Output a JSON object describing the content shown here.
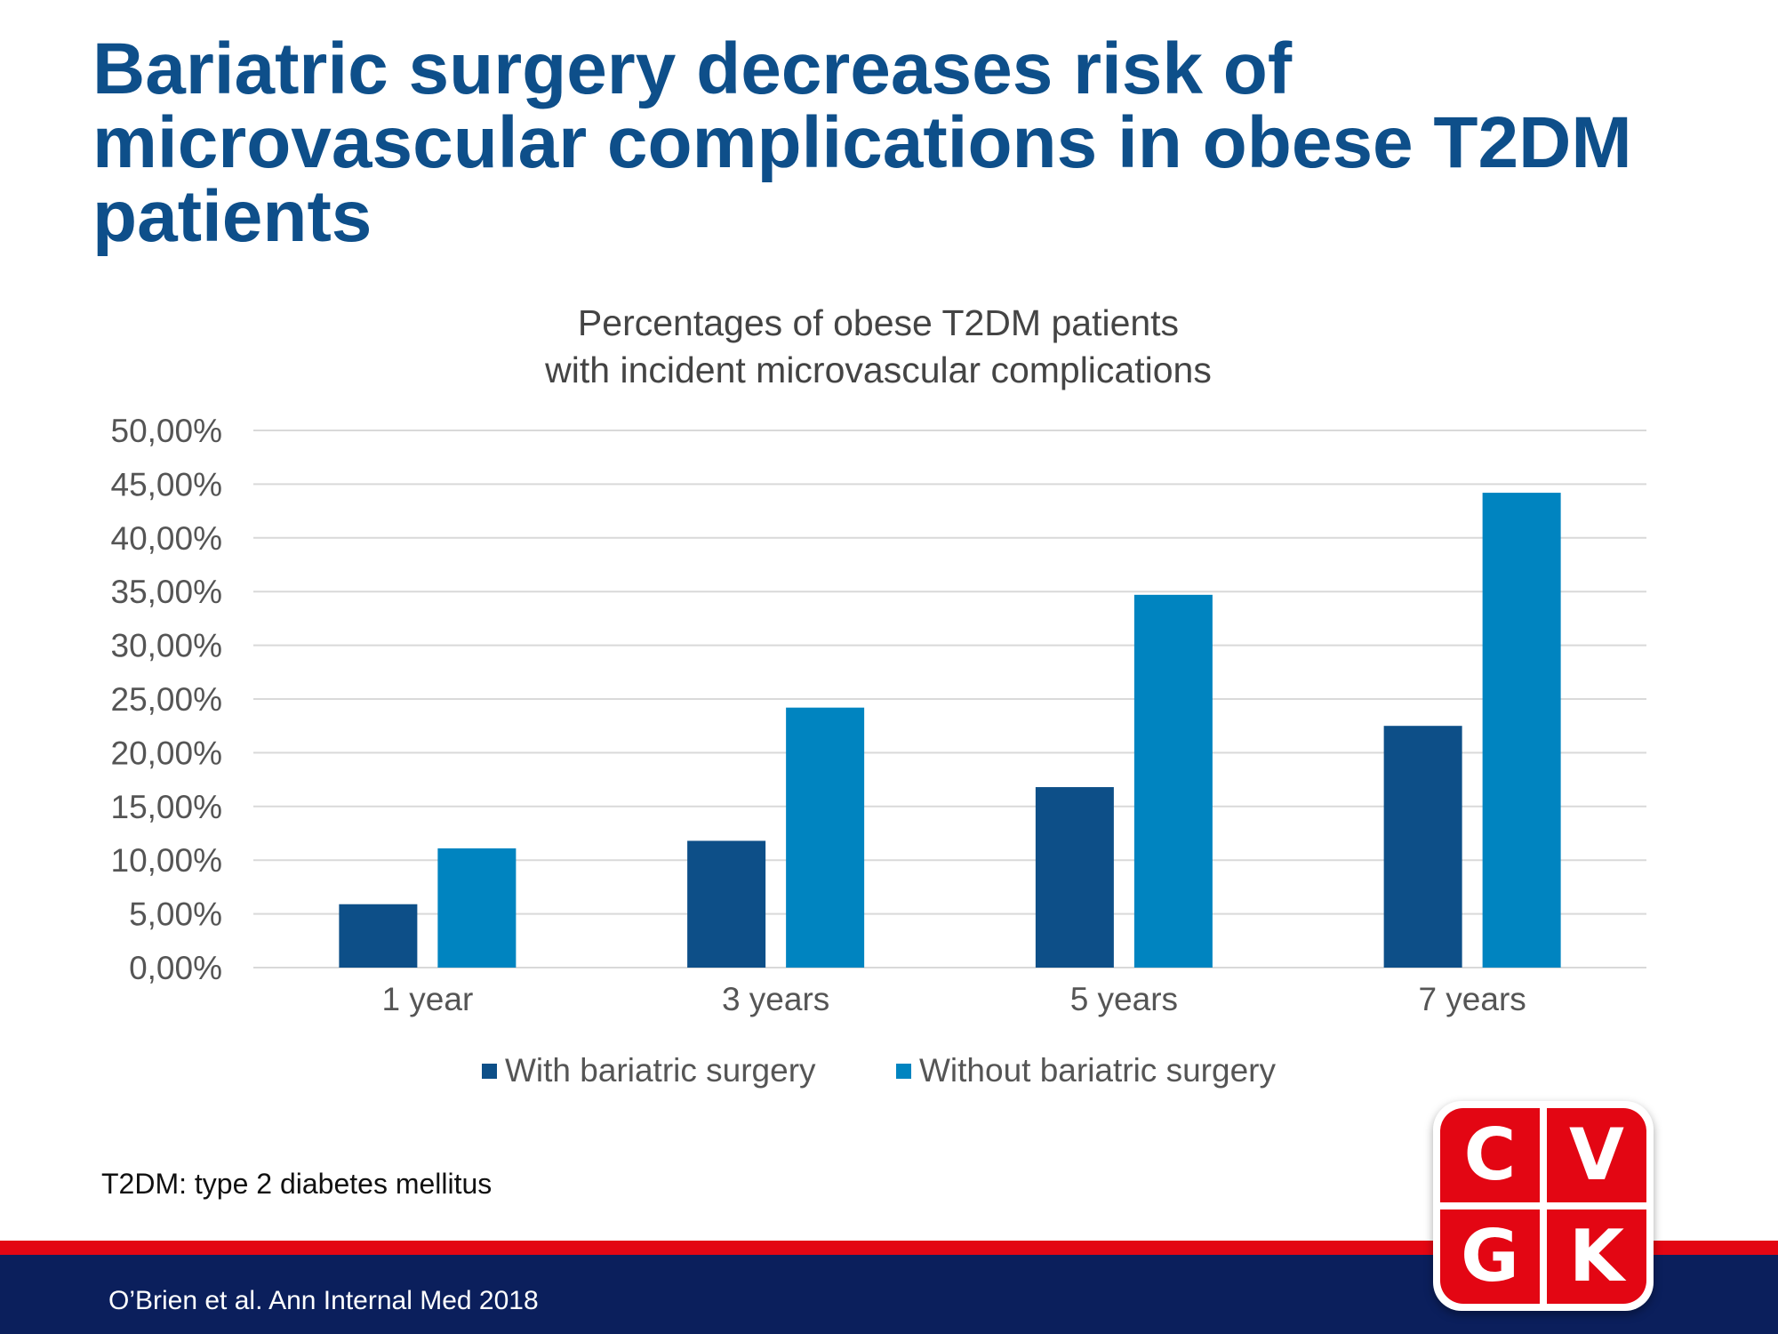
{
  "slide": {
    "title": "Bariatric surgery decreases risk of microvascular complications in obese T2DM patients",
    "footnote": "T2DM: type 2 diabetes mellitus",
    "citation": "O’Brien et al. Ann Internal Med 2018"
  },
  "logo": {
    "letters": [
      "C",
      "V",
      "G",
      "K"
    ]
  },
  "chart_data": {
    "type": "bar",
    "title": [
      "Percentages  of obese T2DM patients",
      "with  incident  microvascular  complications"
    ],
    "categories": [
      "1 year",
      "3 years",
      "5 years",
      "7 years"
    ],
    "series": [
      {
        "name": "With bariatric surgery",
        "values": [
          5.9,
          11.8,
          16.8,
          22.5
        ],
        "color": "#0d4f88"
      },
      {
        "name": "Without bariatric surgery",
        "values": [
          11.1,
          24.2,
          34.7,
          44.2
        ],
        "color": "#0084c0"
      }
    ],
    "ylim": [
      0,
      50
    ],
    "yticks": [
      0,
      5,
      10,
      15,
      20,
      25,
      30,
      35,
      40,
      45,
      50
    ],
    "ytick_labels": [
      "0,00%",
      "5,00%",
      "10,00%",
      "15,00%",
      "20,00%",
      "25,00%",
      "30,00%",
      "35,00%",
      "40,00%",
      "45,00%",
      "50,00%"
    ],
    "grid": true,
    "legend": "bottom"
  }
}
